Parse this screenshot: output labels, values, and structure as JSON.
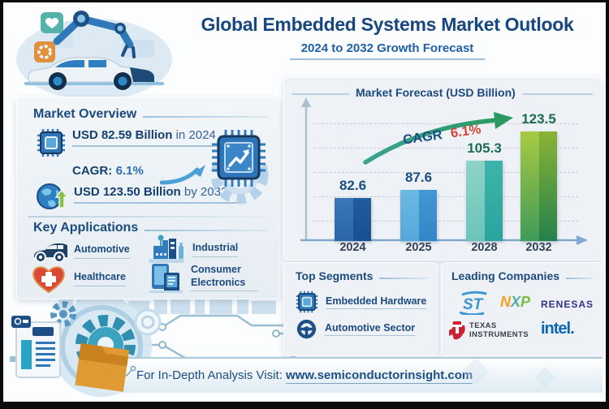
{
  "header": {
    "title": "Global Embedded Systems Market Outlook",
    "subtitle": "2024 to 2032 Growth Forecast"
  },
  "market_overview": {
    "heading": "Market Overview",
    "stat_2024": {
      "bold": "USD 82.59 Billion",
      "rest": "in 2024"
    },
    "cagr": {
      "label": "CAGR:",
      "value": "6.1%"
    },
    "stat_2032": {
      "bold": "USD 123.50 Billion",
      "rest": "by 2032"
    }
  },
  "key_applications": {
    "heading": "Key Applications",
    "items": [
      {
        "label": "Automotive",
        "icon": "car-icon"
      },
      {
        "label": "Industrial",
        "icon": "factory-icon"
      },
      {
        "label": "Healthcare",
        "icon": "heart-icon"
      },
      {
        "label": "Consumer Electronics",
        "icon": "devices-icon"
      }
    ]
  },
  "chart_data": {
    "type": "bar",
    "title": "Market Forecast (USD Billion)",
    "categories": [
      "2024",
      "2025",
      "2028",
      "2032"
    ],
    "values": [
      82.6,
      87.6,
      105.3,
      123.5
    ],
    "ylim": [
      0,
      140
    ],
    "grid": "dashed-horizontal",
    "legend": "none",
    "annotation": {
      "label": "CAGR",
      "value": "6.1%",
      "value_color": "#d04534",
      "arrow_color": "#2f9b78"
    },
    "bar_colors": [
      {
        "left": [
          "#3a77b9",
          "#2a66a8"
        ],
        "right": [
          "#235d9e",
          "#17508f"
        ]
      },
      {
        "left": [
          "#6cb9e4",
          "#55a8da"
        ],
        "right": [
          "#4397d2",
          "#3287c6"
        ]
      },
      {
        "left": [
          "#8ed3c8",
          "#6cc4b8"
        ],
        "right": [
          "#3cb4ab",
          "#2aa49d"
        ]
      },
      {
        "left": [
          "#a8ca43",
          "#3f9a57"
        ],
        "right": [
          "#8bb335",
          "#23814c"
        ]
      }
    ],
    "value_label_colors": [
      "#174e84",
      "#174e84",
      "#1a6b50",
      "#1a6b50"
    ]
  },
  "top_segments": {
    "heading": "Top Segments",
    "items": [
      {
        "label": "Embedded Hardware",
        "icon": "chip-icon"
      },
      {
        "label": "Automotive Sector",
        "icon": "steering-wheel-icon"
      }
    ]
  },
  "leading_companies": {
    "heading": "Leading Companies",
    "st": "ST",
    "nxp_letters": [
      {
        "ch": "N",
        "color": "#f5a21b"
      },
      {
        "ch": "X",
        "color": "#56ad9e"
      },
      {
        "ch": "P",
        "color": "#7abc43"
      }
    ],
    "renesas": "RENESAS",
    "ti_line1": "TEXAS",
    "ti_line2": "INSTRUMENTS",
    "intel": "intel."
  },
  "footer": {
    "prefix": "For In-Depth Analysis Visit:",
    "url": "www.semiconductorinsight.com"
  },
  "colors": {
    "navy": "#17477e",
    "accent_blue": "#2a6cb5",
    "panel_bg": "#eef2f6"
  }
}
